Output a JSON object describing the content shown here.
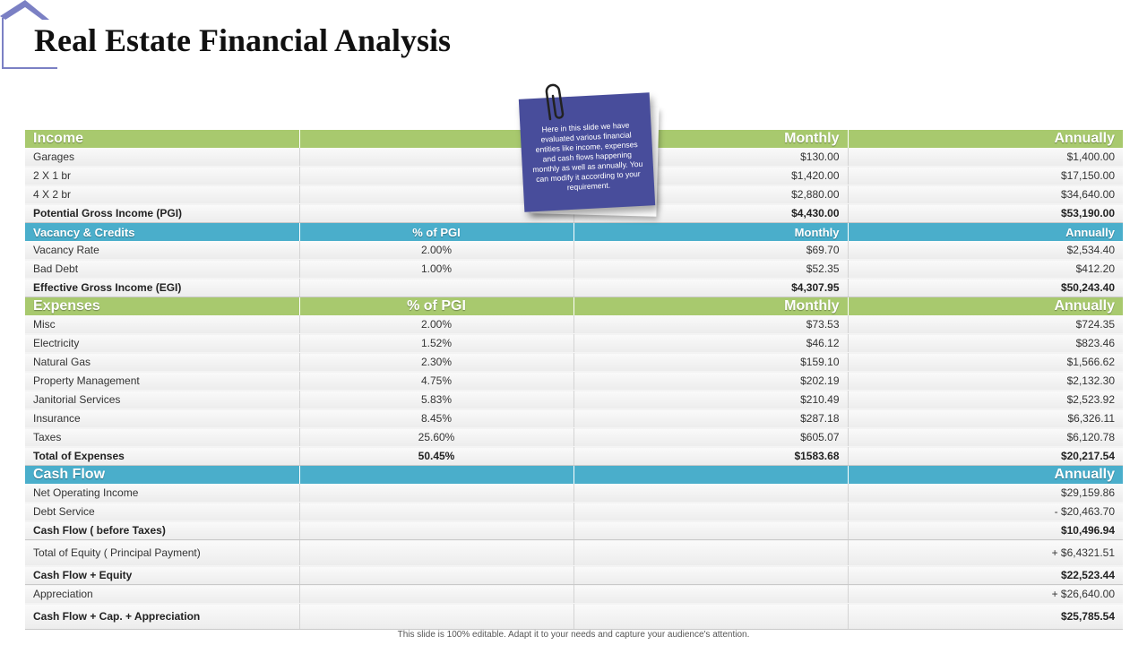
{
  "title": "Real Estate Financial Analysis",
  "note": "Here in this slide we have evaluated various financial entities like income, expenses and cash flows happening monthly as well as annually. You can modify it according to your requirement.",
  "footer": "This slide is 100% editable. Adapt it to your needs and capture your audience's attention.",
  "colors": {
    "green_header": "#a8c96e",
    "blue_header": "#4aaecb",
    "note_bg": "#484d9b",
    "logo": "#7b80c4"
  },
  "icons": {
    "corner": "house-outline-icon",
    "clip": "paperclip-icon"
  },
  "rows": [
    {
      "type": "hdr-green",
      "c1": "Income",
      "c2": "",
      "c3": "Monthly",
      "c4": "Annually"
    },
    {
      "type": "row",
      "c1": "Garages",
      "c2": "",
      "c3": "$130.00",
      "c4": "$1,400.00"
    },
    {
      "type": "row",
      "c1": "2 X 1 br",
      "c2": "",
      "c3": "$1,420.00",
      "c4": "$17,150.00"
    },
    {
      "type": "row",
      "c1": "4 X 2 br",
      "c2": "",
      "c3": "$2,880.00",
      "c4": "$34,640.00"
    },
    {
      "type": "total",
      "c1": "Potential Gross Income (PGI)",
      "c2": "",
      "c3": "$4,430.00",
      "c4": "$53,190.00"
    },
    {
      "type": "hdr-blue",
      "c1": "Vacancy & Credits",
      "c2": "% of PGI",
      "c3": "Monthly",
      "c4": "Annually"
    },
    {
      "type": "row",
      "c1": "Vacancy Rate",
      "c2": "2.00%",
      "c3": "$69.70",
      "c4": "$2,534.40"
    },
    {
      "type": "row",
      "c1": "Bad Debt",
      "c2": "1.00%",
      "c3": "$52.35",
      "c4": "$412.20"
    },
    {
      "type": "total",
      "c1": "Effective Gross Income (EGI)",
      "c2": "",
      "c3": "$4,307.95",
      "c4": "$50,243.40"
    },
    {
      "type": "hdr-green",
      "c1": "Expenses",
      "c2": "% of PGI",
      "c3": "Monthly",
      "c4": "Annually"
    },
    {
      "type": "row",
      "c1": "Misc",
      "c2": "2.00%",
      "c3": "$73.53",
      "c4": "$724.35"
    },
    {
      "type": "row",
      "c1": "Electricity",
      "c2": "1.52%",
      "c3": "$46.12",
      "c4": "$823.46"
    },
    {
      "type": "row",
      "c1": "Natural Gas",
      "c2": "2.30%",
      "c3": "$159.10",
      "c4": "$1,566.62"
    },
    {
      "type": "row",
      "c1": "Property Management",
      "c2": "4.75%",
      "c3": "$202.19",
      "c4": "$2,132.30"
    },
    {
      "type": "row",
      "c1": "Janitorial Services",
      "c2": "5.83%",
      "c3": "$210.49",
      "c4": "$2,523.92"
    },
    {
      "type": "row",
      "c1": "Insurance",
      "c2": "8.45%",
      "c3": "$287.18",
      "c4": "$6,326.11"
    },
    {
      "type": "row",
      "c1": "Taxes",
      "c2": "25.60%",
      "c3": "$605.07",
      "c4": "$6,120.78"
    },
    {
      "type": "total",
      "c1": "Total of Expenses",
      "c2": "50.45%",
      "c3": "$1583.68",
      "c4": "$20,217.54"
    },
    {
      "type": "hdr-blue-big",
      "c1": "Cash Flow",
      "c2": "",
      "c3": "",
      "c4": "Annually"
    },
    {
      "type": "row",
      "c1": "Net Operating Income",
      "c2": "",
      "c3": "",
      "c4": "$29,159.86"
    },
    {
      "type": "row",
      "c1": "Debt Service",
      "c2": "",
      "c3": "",
      "c4": "- $20,463.70"
    },
    {
      "type": "total",
      "c1": "Cash Flow ( before Taxes)",
      "c2": "",
      "c3": "",
      "c4": "$10,496.94"
    },
    {
      "type": "row-tall",
      "c1": "Total of Equity ( Principal Payment)",
      "c2": "",
      "c3": "",
      "c4": "+ $6,4321.51"
    },
    {
      "type": "total",
      "c1": "Cash Flow + Equity",
      "c2": "",
      "c3": "",
      "c4": "$22,523.44"
    },
    {
      "type": "row",
      "c1": "Appreciation",
      "c2": "",
      "c3": "",
      "c4": "+ $26,640.00"
    },
    {
      "type": "total-tall",
      "c1": "Cash Flow + Cap. + Appreciation",
      "c2": "",
      "c3": "",
      "c4": "$25,785.54"
    }
  ]
}
